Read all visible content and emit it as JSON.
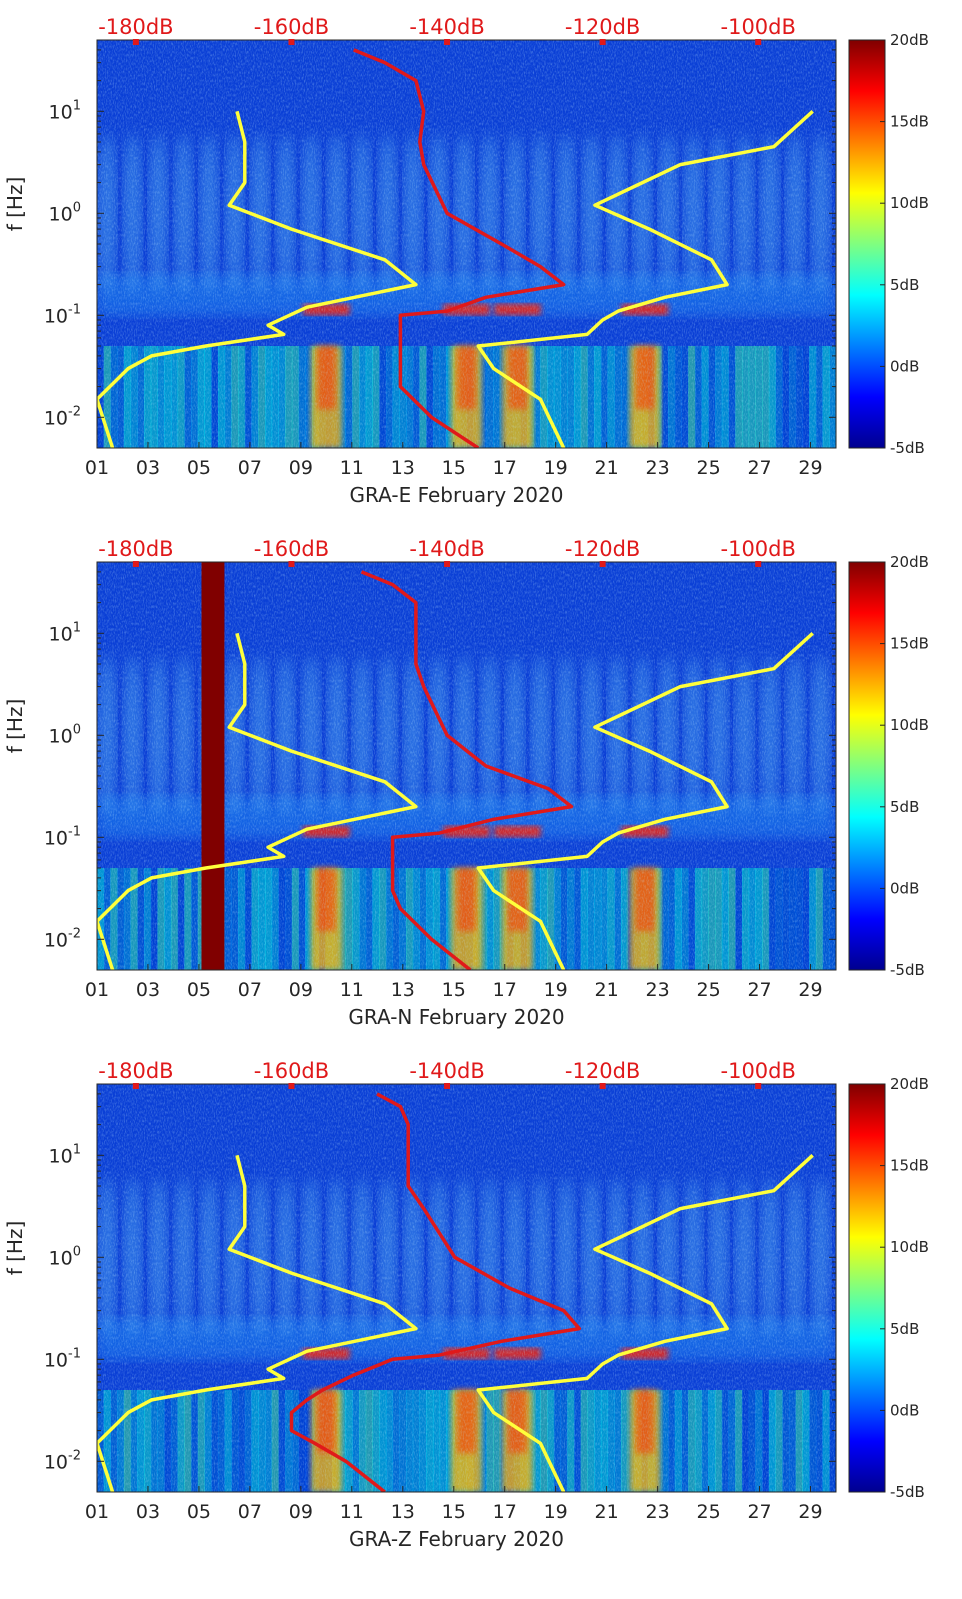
{
  "chart_data": [
    {
      "type": "heatmap",
      "title": "GRA-E February 2020",
      "xlabel": "GRA-E February 2020",
      "ylabel": "f [Hz]",
      "x_ticks": [
        "01",
        "03",
        "05",
        "07",
        "09",
        "11",
        "13",
        "15",
        "17",
        "19",
        "21",
        "23",
        "25",
        "27",
        "29"
      ],
      "y_ticks": [
        "10^-2",
        "10^-1",
        "10^0",
        "10^1"
      ],
      "x_range": [
        1,
        30
      ],
      "y_range_hz": [
        0.005,
        50
      ],
      "top_axis_ticks": [
        "-180dB",
        "-160dB",
        "-140dB",
        "-120dB",
        "-100dB"
      ],
      "colorbar": {
        "ticks": [
          "20dB",
          "15dB",
          "10dB",
          "5dB",
          "0dB",
          "-5dB"
        ],
        "range_db": [
          -5,
          20
        ]
      },
      "bright_days": [
        10,
        15.5,
        17.5,
        22.5
      ],
      "series": [
        {
          "name": "red PSD curve",
          "color": "#e0191a",
          "points": [
            [
              40,
              -152
            ],
            [
              30,
              -148
            ],
            [
              20,
              -144
            ],
            [
              10,
              -143
            ],
            [
              5,
              -143.5
            ],
            [
              3,
              -143
            ],
            [
              1,
              -140
            ],
            [
              0.5,
              -133
            ],
            [
              0.3,
              -128
            ],
            [
              0.2,
              -125
            ],
            [
              0.15,
              -135
            ],
            [
              0.11,
              -140
            ],
            [
              0.1,
              -146
            ],
            [
              0.09,
              -146
            ],
            [
              0.05,
              -146
            ],
            [
              0.03,
              -146
            ],
            [
              0.02,
              -146
            ],
            [
              0.01,
              -142
            ],
            [
              0.005,
              -136
            ]
          ]
        },
        {
          "name": "yellow noise model (left)",
          "color": "#ffff3b",
          "points": [
            [
              10,
              -167
            ],
            [
              5,
              -166
            ],
            [
              2,
              -166
            ],
            [
              1.2,
              -168
            ],
            [
              0.7,
              -160
            ],
            [
              0.35,
              -148
            ],
            [
              0.2,
              -144
            ],
            [
              0.12,
              -158
            ],
            [
              0.08,
              -163
            ],
            [
              0.065,
              -161
            ],
            [
              0.05,
              -171
            ],
            [
              0.04,
              -178
            ],
            [
              0.03,
              -181
            ],
            [
              0.015,
              -185
            ],
            [
              0.005,
              -183
            ]
          ]
        },
        {
          "name": "yellow noise model (right)",
          "color": "#ffff3b",
          "points": [
            [
              10,
              -93
            ],
            [
              4.5,
              -98
            ],
            [
              3,
              -110
            ],
            [
              1.2,
              -121
            ],
            [
              0.7,
              -114
            ],
            [
              0.35,
              -106
            ],
            [
              0.2,
              -104
            ],
            [
              0.15,
              -112
            ],
            [
              0.11,
              -118
            ],
            [
              0.09,
              -120
            ],
            [
              0.065,
              -122
            ],
            [
              0.05,
              -136
            ],
            [
              0.03,
              -134
            ],
            [
              0.015,
              -128
            ],
            [
              0.005,
              -125
            ]
          ]
        }
      ]
    },
    {
      "type": "heatmap",
      "title": "GRA-N February 2020",
      "xlabel": "GRA-N February 2020",
      "ylabel": "f [Hz]",
      "x_ticks": [
        "01",
        "03",
        "05",
        "07",
        "09",
        "11",
        "13",
        "15",
        "17",
        "19",
        "21",
        "23",
        "25",
        "27",
        "29"
      ],
      "y_ticks": [
        "10^-2",
        "10^-1",
        "10^0",
        "10^1"
      ],
      "x_range": [
        1,
        30
      ],
      "y_range_hz": [
        0.005,
        50
      ],
      "top_axis_ticks": [
        "-180dB",
        "-160dB",
        "-140dB",
        "-120dB",
        "-100dB"
      ],
      "colorbar": {
        "ticks": [
          "20dB",
          "15dB",
          "10dB",
          "5dB",
          "0dB",
          "-5dB"
        ],
        "range_db": [
          -5,
          20
        ]
      },
      "bright_days": [
        10,
        15.5,
        17.5,
        22.5
      ],
      "gap_days": [
        5.1,
        6.0
      ],
      "series": [
        {
          "name": "red PSD curve",
          "color": "#e0191a",
          "points": [
            [
              40,
              -151
            ],
            [
              30,
              -147
            ],
            [
              20,
              -144
            ],
            [
              10,
              -144
            ],
            [
              5,
              -144
            ],
            [
              3,
              -143
            ],
            [
              1,
              -140
            ],
            [
              0.5,
              -135
            ],
            [
              0.3,
              -127
            ],
            [
              0.2,
              -124
            ],
            [
              0.15,
              -134
            ],
            [
              0.11,
              -141
            ],
            [
              0.1,
              -147
            ],
            [
              0.09,
              -147
            ],
            [
              0.05,
              -147
            ],
            [
              0.03,
              -147
            ],
            [
              0.02,
              -146
            ],
            [
              0.01,
              -142
            ],
            [
              0.005,
              -137
            ]
          ]
        },
        {
          "name": "yellow noise model (left)",
          "color": "#ffff3b",
          "points": [
            [
              10,
              -167
            ],
            [
              5,
              -166
            ],
            [
              2,
              -166
            ],
            [
              1.2,
              -168
            ],
            [
              0.7,
              -160
            ],
            [
              0.35,
              -148
            ],
            [
              0.2,
              -144
            ],
            [
              0.12,
              -158
            ],
            [
              0.08,
              -163
            ],
            [
              0.065,
              -161
            ],
            [
              0.05,
              -171
            ],
            [
              0.04,
              -178
            ],
            [
              0.03,
              -181
            ],
            [
              0.015,
              -185
            ],
            [
              0.005,
              -183
            ]
          ]
        },
        {
          "name": "yellow noise model (right)",
          "color": "#ffff3b",
          "points": [
            [
              10,
              -93
            ],
            [
              4.5,
              -98
            ],
            [
              3,
              -110
            ],
            [
              1.2,
              -121
            ],
            [
              0.7,
              -114
            ],
            [
              0.35,
              -106
            ],
            [
              0.2,
              -104
            ],
            [
              0.15,
              -112
            ],
            [
              0.11,
              -118
            ],
            [
              0.09,
              -120
            ],
            [
              0.065,
              -122
            ],
            [
              0.05,
              -136
            ],
            [
              0.03,
              -134
            ],
            [
              0.015,
              -128
            ],
            [
              0.005,
              -125
            ]
          ]
        }
      ]
    },
    {
      "type": "heatmap",
      "title": "GRA-Z February 2020",
      "xlabel": "GRA-Z February 2020",
      "ylabel": "f [Hz]",
      "x_ticks": [
        "01",
        "03",
        "05",
        "07",
        "09",
        "11",
        "13",
        "15",
        "17",
        "19",
        "21",
        "23",
        "25",
        "27",
        "29"
      ],
      "y_ticks": [
        "10^-2",
        "10^-1",
        "10^0",
        "10^1"
      ],
      "x_range": [
        1,
        30
      ],
      "y_range_hz": [
        0.005,
        50
      ],
      "top_axis_ticks": [
        "-180dB",
        "-160dB",
        "-140dB",
        "-120dB",
        "-100dB"
      ],
      "colorbar": {
        "ticks": [
          "20dB",
          "15dB",
          "10dB",
          "5dB",
          "0dB",
          "-5dB"
        ],
        "range_db": [
          -5,
          20
        ]
      },
      "bright_days": [
        10,
        15.5,
        17.5,
        22.5
      ],
      "series": [
        {
          "name": "red PSD curve",
          "color": "#e0191a",
          "points": [
            [
              40,
              -149
            ],
            [
              30,
              -146
            ],
            [
              20,
              -145
            ],
            [
              10,
              -145
            ],
            [
              5,
              -145
            ],
            [
              3,
              -143
            ],
            [
              1,
              -139
            ],
            [
              0.5,
              -132
            ],
            [
              0.3,
              -125
            ],
            [
              0.2,
              -123
            ],
            [
              0.15,
              -133
            ],
            [
              0.11,
              -141
            ],
            [
              0.1,
              -147
            ],
            [
              0.07,
              -152
            ],
            [
              0.05,
              -156
            ],
            [
              0.04,
              -158
            ],
            [
              0.03,
              -160
            ],
            [
              0.02,
              -160
            ],
            [
              0.015,
              -157
            ],
            [
              0.01,
              -153
            ],
            [
              0.005,
              -148
            ]
          ]
        },
        {
          "name": "yellow noise model (left)",
          "color": "#ffff3b",
          "points": [
            [
              10,
              -167
            ],
            [
              5,
              -166
            ],
            [
              2,
              -166
            ],
            [
              1.2,
              -168
            ],
            [
              0.7,
              -160
            ],
            [
              0.35,
              -148
            ],
            [
              0.2,
              -144
            ],
            [
              0.12,
              -158
            ],
            [
              0.08,
              -163
            ],
            [
              0.065,
              -161
            ],
            [
              0.05,
              -171
            ],
            [
              0.04,
              -178
            ],
            [
              0.03,
              -181
            ],
            [
              0.015,
              -185
            ],
            [
              0.005,
              -183
            ]
          ]
        },
        {
          "name": "yellow noise model (right)",
          "color": "#ffff3b",
          "points": [
            [
              10,
              -93
            ],
            [
              4.5,
              -98
            ],
            [
              3,
              -110
            ],
            [
              1.2,
              -121
            ],
            [
              0.7,
              -114
            ],
            [
              0.35,
              -106
            ],
            [
              0.2,
              -104
            ],
            [
              0.15,
              -112
            ],
            [
              0.11,
              -118
            ],
            [
              0.09,
              -120
            ],
            [
              0.065,
              -122
            ],
            [
              0.05,
              -136
            ],
            [
              0.03,
              -134
            ],
            [
              0.015,
              -128
            ],
            [
              0.005,
              -125
            ]
          ]
        }
      ]
    }
  ]
}
